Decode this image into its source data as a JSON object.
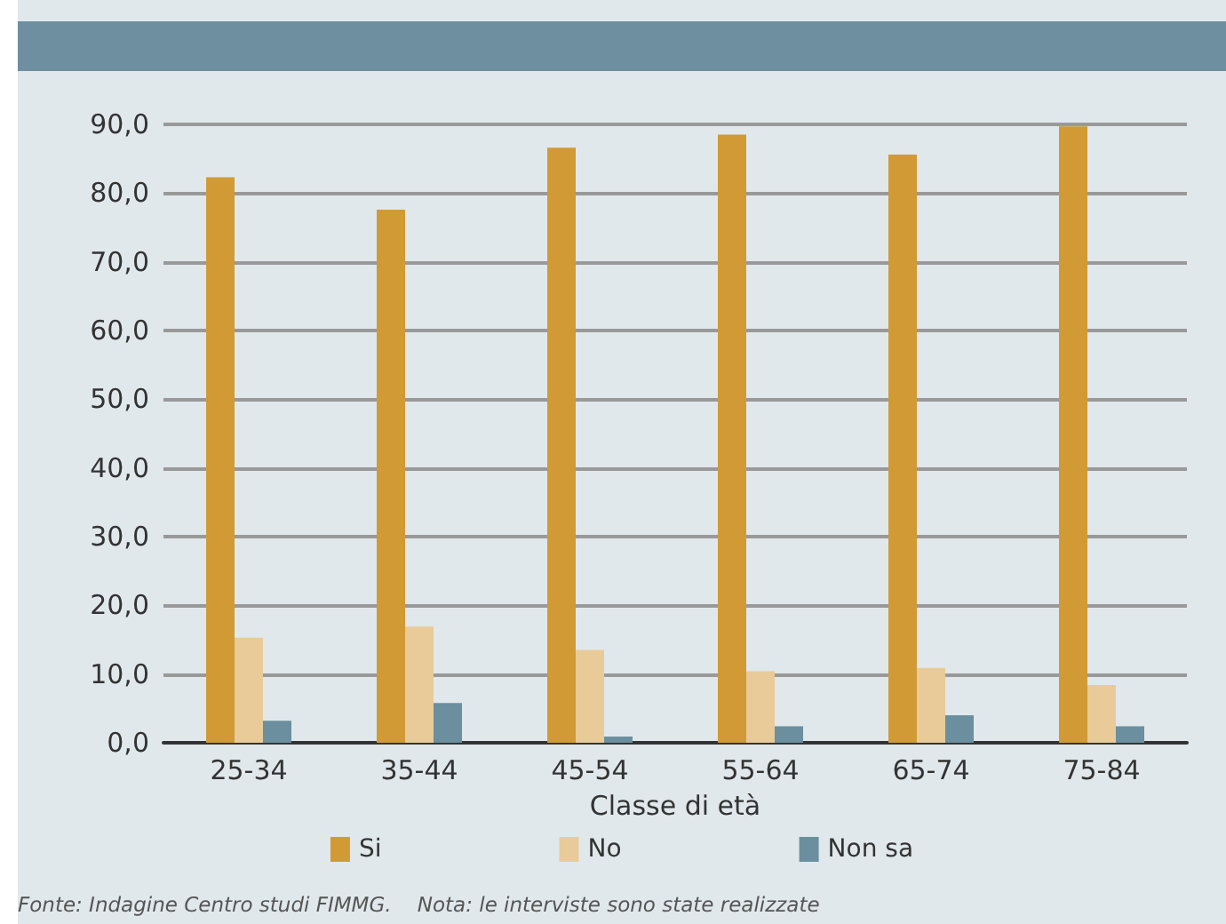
{
  "chart_data": {
    "type": "bar",
    "xlabel": "Classe di età",
    "categories": [
      "25-34",
      "35-44",
      "45-54",
      "55-64",
      "65-74",
      "75-84"
    ],
    "series": [
      {
        "name": "Si",
        "color": "#d19a35",
        "values": [
          82.3,
          77.6,
          86.6,
          88.5,
          85.6,
          89.7
        ]
      },
      {
        "name": "No",
        "color": "#e8cb98",
        "values": [
          15.3,
          16.9,
          13.5,
          10.4,
          10.9,
          8.4
        ]
      },
      {
        "name": "Non sa",
        "color": "#6b8f9e",
        "values": [
          3.2,
          5.8,
          0.9,
          2.4,
          4.0,
          2.4
        ]
      }
    ],
    "ylim": [
      0,
      90
    ],
    "yticks": [
      {
        "value": 0,
        "label": "0,0"
      },
      {
        "value": 10,
        "label": "10,0"
      },
      {
        "value": 20,
        "label": "20,0"
      },
      {
        "value": 30,
        "label": "30,0"
      },
      {
        "value": 40,
        "label": "40,0"
      },
      {
        "value": 50,
        "label": "50,0"
      },
      {
        "value": 60,
        "label": "60,0"
      },
      {
        "value": 70,
        "label": "70,0"
      },
      {
        "value": 80,
        "label": "80,0"
      },
      {
        "value": 90,
        "label": "90,0"
      }
    ],
    "grid": "y",
    "legend": "bottom",
    "annotations": [
      "Fonte: Indagine Centro studi FIMMG.    Nota: le interviste sono state realizzate"
    ]
  }
}
